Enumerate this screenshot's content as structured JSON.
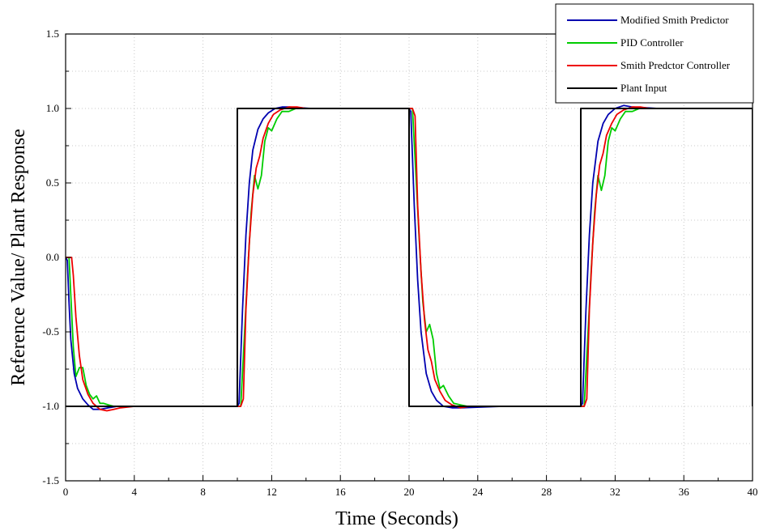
{
  "chart_data": {
    "type": "line",
    "title": "",
    "xlabel": "Time (Seconds)",
    "ylabel": "Reference Value/ Plant Response",
    "xlim": [
      0,
      40
    ],
    "ylim": [
      -1.5,
      1.5
    ],
    "xticks": [
      0,
      4,
      8,
      12,
      16,
      20,
      24,
      28,
      32,
      36,
      40
    ],
    "yticks": [
      -1.5,
      -1.0,
      -0.5,
      0.0,
      0.5,
      1.0,
      1.5
    ],
    "xtick_labels": [
      "0",
      "4",
      "8",
      "12",
      "16",
      "20",
      "24",
      "28",
      "32",
      "36",
      "40"
    ],
    "ytick_labels": [
      "-1.5",
      "-1.0",
      "-0.5",
      "0.0",
      "0.5",
      "1.0",
      "1.5"
    ],
    "grid": true,
    "legend_position": "top-right",
    "series": [
      {
        "name": "Modified Smith Predictor",
        "color": "#0000b0",
        "x": [
          0,
          0.1,
          0.2,
          0.3,
          0.5,
          0.7,
          1.0,
          1.3,
          1.6,
          2.0,
          2.5,
          3.0,
          10.0,
          10.1,
          10.3,
          10.5,
          10.7,
          10.9,
          11.2,
          11.5,
          11.8,
          12.2,
          12.6,
          13.0,
          14.3,
          20.0,
          20.1,
          20.3,
          20.5,
          20.7,
          21.0,
          21.3,
          21.6,
          22.0,
          22.5,
          23.0,
          25.4,
          30.0,
          30.1,
          30.3,
          30.5,
          30.7,
          31.0,
          31.3,
          31.6,
          32.0,
          32.5,
          33.0,
          34.5
        ],
        "values": [
          0,
          -0.02,
          -0.3,
          -0.55,
          -0.78,
          -0.88,
          -0.95,
          -0.99,
          -1.02,
          -1.02,
          -1.01,
          -1.0,
          -1.0,
          -0.98,
          -0.35,
          0.15,
          0.5,
          0.72,
          0.86,
          0.93,
          0.97,
          1.0,
          1.01,
          1.01,
          1.0,
          1.0,
          0.98,
          0.35,
          -0.15,
          -0.5,
          -0.78,
          -0.9,
          -0.96,
          -1.0,
          -1.01,
          -1.01,
          -1.0,
          -1.0,
          -0.98,
          -0.35,
          0.15,
          0.5,
          0.78,
          0.9,
          0.96,
          1.0,
          1.02,
          1.01,
          1.0
        ]
      },
      {
        "name": "PID Controller",
        "color": "#00cc00",
        "x": [
          0,
          0.2,
          0.3,
          0.45,
          0.6,
          0.8,
          1.0,
          1.2,
          1.4,
          1.6,
          1.8,
          2.0,
          2.2,
          2.5,
          2.8,
          3.0,
          10.0,
          10.2,
          10.4,
          10.6,
          10.8,
          11.0,
          11.2,
          11.4,
          11.6,
          11.8,
          12.0,
          12.3,
          12.6,
          13.0,
          13.4,
          14.0,
          20.0,
          20.2,
          20.4,
          20.6,
          20.8,
          21.0,
          21.2,
          21.4,
          21.6,
          21.8,
          22.0,
          22.3,
          22.6,
          23.0,
          23.4,
          24.0,
          30.0,
          30.2,
          30.4,
          30.6,
          30.8,
          31.0,
          31.2,
          31.4,
          31.6,
          31.8,
          32.0,
          32.3,
          32.6,
          33.0,
          33.4,
          34.0
        ],
        "values": [
          0,
          0,
          -0.25,
          -0.6,
          -0.8,
          -0.74,
          -0.74,
          -0.86,
          -0.92,
          -0.95,
          -0.93,
          -0.98,
          -0.98,
          -0.99,
          -1.0,
          -1.0,
          -1.0,
          -1.0,
          -0.55,
          -0.1,
          0.3,
          0.55,
          0.46,
          0.55,
          0.78,
          0.87,
          0.85,
          0.93,
          0.98,
          0.98,
          1.0,
          1.0,
          1.0,
          1.0,
          0.55,
          0.1,
          -0.3,
          -0.5,
          -0.45,
          -0.55,
          -0.78,
          -0.88,
          -0.86,
          -0.93,
          -0.98,
          -0.99,
          -1.0,
          -1.0,
          -1.0,
          -1.0,
          -0.55,
          -0.1,
          0.3,
          0.55,
          0.45,
          0.55,
          0.78,
          0.87,
          0.85,
          0.93,
          0.98,
          0.98,
          1.0,
          1.0
        ]
      },
      {
        "name": "Smith Predctor Controller",
        "color": "#ee0000",
        "x": [
          0,
          0.35,
          0.45,
          0.6,
          0.8,
          1.0,
          1.3,
          1.6,
          2.0,
          2.4,
          2.8,
          3.2,
          4.0,
          5.0,
          10.0,
          10.2,
          10.35,
          10.5,
          10.7,
          10.9,
          11.1,
          11.3,
          11.5,
          11.8,
          12.1,
          12.5,
          13.0,
          13.5,
          14.0,
          20.0,
          20.2,
          20.35,
          20.5,
          20.7,
          20.9,
          21.1,
          21.3,
          21.5,
          21.8,
          22.1,
          22.5,
          23.0,
          23.5,
          24.0,
          30.0,
          30.2,
          30.35,
          30.5,
          30.7,
          30.9,
          31.1,
          31.3,
          31.5,
          31.8,
          32.1,
          32.5,
          33.0,
          33.5,
          34.0
        ],
        "values": [
          0,
          0,
          -0.12,
          -0.4,
          -0.66,
          -0.82,
          -0.92,
          -0.98,
          -1.02,
          -1.03,
          -1.02,
          -1.01,
          -1.0,
          -1.0,
          -1.0,
          -1.0,
          -0.95,
          -0.35,
          0.1,
          0.42,
          0.6,
          0.68,
          0.8,
          0.9,
          0.96,
          0.99,
          1.01,
          1.01,
          1.0,
          1.0,
          1.0,
          0.95,
          0.35,
          -0.1,
          -0.42,
          -0.62,
          -0.7,
          -0.82,
          -0.9,
          -0.96,
          -0.99,
          -1.01,
          -1.0,
          -1.0,
          -1.0,
          -1.0,
          -0.95,
          -0.35,
          0.1,
          0.42,
          0.62,
          0.7,
          0.82,
          0.9,
          0.96,
          0.99,
          1.01,
          1.01,
          1.0
        ]
      },
      {
        "name": "Plant Input",
        "color": "#000000",
        "x": [
          0,
          10,
          10,
          20,
          20,
          30,
          30,
          40,
          40
        ],
        "values": [
          -1,
          -1,
          1,
          1,
          -1,
          -1,
          1,
          1,
          -1
        ]
      }
    ]
  }
}
